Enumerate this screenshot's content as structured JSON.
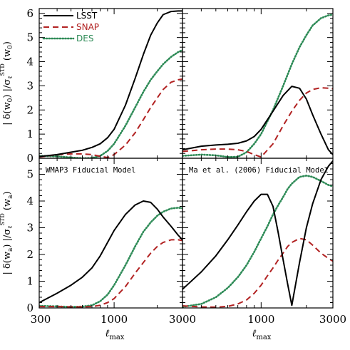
{
  "chart_data": {
    "type": "line",
    "layout": "2x2 grid",
    "x_scale": "log",
    "xlim": [
      300,
      3000
    ],
    "series_colors": {
      "LSST": "#000000",
      "SNAP": "#b22222",
      "DES": "#2e8b57"
    },
    "series_styles": {
      "LSST": "solid",
      "SNAP": "dashed",
      "DES": "dotted"
    },
    "legend": {
      "placement": "top-left",
      "entries": [
        {
          "name": "LSST",
          "color": "#000000",
          "style": "solid"
        },
        {
          "name": "SNAP",
          "color": "#b22222",
          "style": "dashed"
        },
        {
          "name": "DES",
          "color": "#2e8b57",
          "style": "dotted"
        }
      ]
    },
    "x_tick_labels": [
      "300",
      "1000",
      "3000"
    ],
    "xlabel": "ℓmax",
    "row_labels": [
      {
        "main": "| δ(w",
        "sub": "0",
        "mid": ") |/σ",
        "sub2": "ℓ",
        "sup": "STD",
        "tail": " (w",
        "sub3": "0",
        "end": ")"
      },
      {
        "main": "| δ(w",
        "sub": "a",
        "mid": ") |/σ",
        "sub2": "ℓ",
        "sup": "STD",
        "tail": " (w",
        "sub3": "a",
        "end": ")"
      }
    ],
    "rows": [
      {
        "ylim": [
          0,
          6.2
        ],
        "y_tick_labels": [
          "0",
          "1",
          "2",
          "3",
          "4",
          "5",
          "6"
        ],
        "y_ticks": [
          0,
          1,
          2,
          3,
          4,
          5,
          6
        ]
      },
      {
        "ylim": [
          0,
          5.6
        ],
        "y_tick_labels": [
          "0",
          "1",
          "2",
          "3",
          "4",
          "5"
        ],
        "y_ticks": [
          0,
          1,
          2,
          3,
          4,
          5
        ]
      }
    ],
    "panels": [
      {
        "row": 0,
        "col": 0,
        "annotation": "",
        "x": [
          300,
          400,
          500,
          600,
          700,
          800,
          900,
          1000,
          1200,
          1400,
          1600,
          1800,
          2000,
          2200,
          2500,
          2800,
          3000
        ],
        "series": [
          {
            "name": "LSST",
            "values": [
              0.07,
              0.15,
              0.25,
              0.33,
              0.45,
              0.6,
              0.85,
              1.2,
              2.2,
              3.3,
              4.3,
              5.1,
              5.6,
              5.95,
              6.08,
              6.1,
              6.1
            ]
          },
          {
            "name": "SNAP",
            "values": [
              0.05,
              0.15,
              0.18,
              0.18,
              0.15,
              0.08,
              0.03,
              0.15,
              0.55,
              1.05,
              1.6,
              2.1,
              2.5,
              2.85,
              3.15,
              3.25,
              3.28
            ]
          },
          {
            "name": "DES",
            "values": [
              0.1,
              0.08,
              0.03,
              0.0,
              0.01,
              0.1,
              0.3,
              0.6,
              1.35,
              2.1,
              2.75,
              3.25,
              3.6,
              3.9,
              4.2,
              4.4,
              4.48
            ]
          }
        ]
      },
      {
        "row": 0,
        "col": 1,
        "annotation": "",
        "x": [
          300,
          400,
          500,
          600,
          700,
          800,
          900,
          1000,
          1200,
          1400,
          1600,
          1800,
          2000,
          2200,
          2500,
          2800,
          3000
        ],
        "series": [
          {
            "name": "LSST",
            "values": [
              0.35,
              0.5,
              0.55,
              0.58,
              0.62,
              0.72,
              0.9,
              1.2,
              1.95,
              2.6,
              2.98,
              2.9,
              2.45,
              1.8,
              1.0,
              0.35,
              0.15
            ]
          },
          {
            "name": "SNAP",
            "values": [
              0.28,
              0.35,
              0.38,
              0.38,
              0.35,
              0.28,
              0.15,
              0.05,
              0.6,
              1.35,
              1.95,
              2.4,
              2.7,
              2.85,
              2.92,
              2.9,
              2.88
            ]
          },
          {
            "name": "DES",
            "values": [
              0.1,
              0.15,
              0.12,
              0.05,
              0.06,
              0.25,
              0.6,
              1.0,
              2.0,
              3.0,
              3.9,
              4.6,
              5.1,
              5.5,
              5.8,
              5.92,
              5.95
            ]
          }
        ]
      },
      {
        "row": 1,
        "col": 0,
        "annotation": "WMAP3 Fiducial Model",
        "x": [
          300,
          400,
          500,
          600,
          700,
          800,
          900,
          1000,
          1200,
          1400,
          1600,
          1800,
          2000,
          2200,
          2500,
          2800,
          3000
        ],
        "series": [
          {
            "name": "LSST",
            "values": [
              0.2,
              0.55,
              0.85,
              1.15,
              1.5,
              1.95,
              2.45,
              2.9,
              3.5,
              3.85,
              4.0,
              3.95,
              3.7,
              3.4,
              3.05,
              2.72,
              2.55
            ]
          },
          {
            "name": "SNAP",
            "values": [
              0.05,
              0.05,
              0.04,
              0.04,
              0.05,
              0.1,
              0.2,
              0.35,
              0.8,
              1.3,
              1.7,
              2.05,
              2.3,
              2.45,
              2.55,
              2.55,
              2.52
            ]
          },
          {
            "name": "DES",
            "values": [
              0.08,
              0.06,
              0.04,
              0.05,
              0.1,
              0.25,
              0.5,
              0.85,
              1.6,
              2.3,
              2.85,
              3.2,
              3.45,
              3.6,
              3.72,
              3.75,
              3.73
            ]
          }
        ]
      },
      {
        "row": 1,
        "col": 1,
        "annotation": "Ma et al. (2006) Fiducial Model",
        "x": [
          300,
          400,
          500,
          600,
          700,
          800,
          900,
          1000,
          1100,
          1200,
          1300,
          1400,
          1500,
          1600,
          1800,
          2000,
          2200,
          2500,
          2800,
          3000
        ],
        "series": [
          {
            "name": "LSST",
            "values": [
              0.7,
              1.35,
              1.95,
              2.55,
              3.1,
              3.6,
              4.0,
              4.25,
              4.25,
              3.8,
              2.8,
              1.8,
              0.9,
              0.1,
              1.7,
              3.0,
              3.9,
              4.8,
              5.3,
              5.5
            ]
          },
          {
            "name": "SNAP",
            "values": [
              0.08,
              0.04,
              0.03,
              0.06,
              0.15,
              0.3,
              0.55,
              0.85,
              1.2,
              1.5,
              1.8,
              2.05,
              2.3,
              2.45,
              2.6,
              2.55,
              2.35,
              2.05,
              1.85,
              1.75
            ]
          },
          {
            "name": "DES",
            "values": [
              0.04,
              0.15,
              0.4,
              0.75,
              1.15,
              1.6,
              2.1,
              2.6,
              3.05,
              3.5,
              3.85,
              4.15,
              4.45,
              4.65,
              4.9,
              4.95,
              4.9,
              4.75,
              4.6,
              4.55
            ]
          }
        ]
      }
    ]
  }
}
